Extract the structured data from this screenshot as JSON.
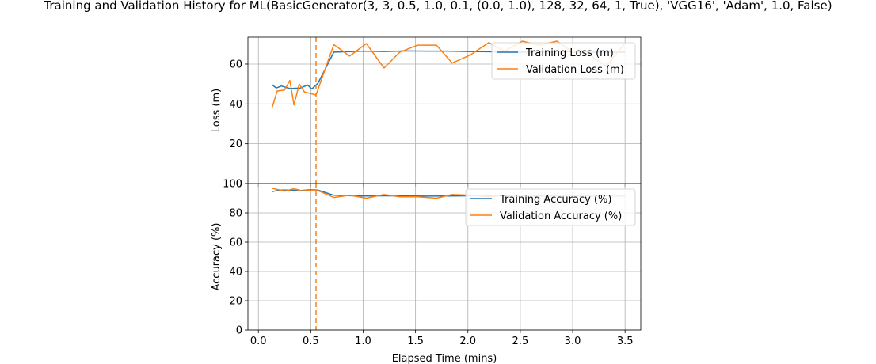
{
  "title": "Training and Validation History for ML(BasicGenerator(3, 3, 0.5, 1.0, 0.1, (0.0, 1.0), 128, 32, 64, 1, True), 'VGG16', 'Adam', 1.0, False)",
  "colors": {
    "training": "#1f77b4",
    "validation": "#ff7f0e",
    "grid": "#b0b0b0",
    "axis": "#000000"
  },
  "chart_data": [
    {
      "type": "line",
      "ylabel": "Loss (m)",
      "xlabel": "",
      "xlim": [
        -0.1,
        3.65
      ],
      "ylim": [
        0,
        73.5
      ],
      "xticks": [
        0.0,
        0.5,
        1.0,
        1.5,
        2.0,
        2.5,
        3.0,
        3.5
      ],
      "yticks": [
        0,
        20,
        40,
        60
      ],
      "ytick_labels": [
        "0",
        "20",
        "40",
        "60"
      ],
      "show_xtick_labels": false,
      "grid": true,
      "legend_position": "top-right",
      "vline_x": 0.55,
      "series": [
        {
          "name": "Training Loss (m)",
          "color_key": "training",
          "x": [
            0.13,
            0.17,
            0.22,
            0.3,
            0.4,
            0.47,
            0.51,
            0.57,
            0.72,
            0.85,
            1.0,
            1.2,
            1.4,
            1.6,
            1.8,
            2.0,
            2.2,
            2.4,
            2.6,
            2.8,
            3.0,
            3.2,
            3.4,
            3.5
          ],
          "y": [
            49.7,
            48.0,
            49.0,
            47.7,
            48.0,
            49.5,
            47.5,
            50.5,
            66.0,
            66.2,
            66.5,
            66.3,
            66.6,
            66.5,
            66.5,
            66.3,
            66.2,
            66.0,
            66.0,
            66.2,
            66.2,
            66.0,
            66.0,
            66.0
          ]
        },
        {
          "name": "Validation Loss (m)",
          "color_key": "validation",
          "x": [
            0.13,
            0.18,
            0.25,
            0.3,
            0.34,
            0.39,
            0.44,
            0.55,
            0.72,
            0.87,
            1.03,
            1.2,
            1.35,
            1.52,
            1.7,
            1.85,
            2.02,
            2.2,
            2.35,
            2.52,
            2.68,
            2.85,
            3.0,
            3.15,
            3.32,
            3.5
          ],
          "y": [
            38.0,
            46.5,
            47.0,
            51.8,
            39.5,
            50.0,
            46.0,
            44.5,
            69.8,
            64.0,
            70.3,
            58.0,
            66.0,
            69.5,
            69.5,
            60.5,
            64.5,
            70.8,
            66.5,
            71.5,
            69.5,
            71.5,
            66.0,
            65.0,
            59.0,
            70.5
          ]
        }
      ]
    },
    {
      "type": "line",
      "ylabel": "Accuracy (%)",
      "xlabel": "Elapsed Time (mins)",
      "xlim": [
        -0.1,
        3.65
      ],
      "ylim": [
        0,
        100
      ],
      "xticks": [
        0.0,
        0.5,
        1.0,
        1.5,
        2.0,
        2.5,
        3.0,
        3.5
      ],
      "xtick_labels": [
        "0.0",
        "0.5",
        "1.0",
        "1.5",
        "2.0",
        "2.5",
        "3.0",
        "3.5"
      ],
      "yticks": [
        0,
        20,
        40,
        60,
        80,
        100
      ],
      "ytick_labels": [
        "0",
        "20",
        "40",
        "60",
        "80",
        "100"
      ],
      "show_xtick_labels": true,
      "grid": true,
      "legend_position": "top-right",
      "vline_x": 0.55,
      "series": [
        {
          "name": "Training Accuracy (%)",
          "color_key": "training",
          "x": [
            0.13,
            0.2,
            0.3,
            0.4,
            0.5,
            0.57,
            0.72,
            0.85,
            1.0,
            1.2,
            1.4,
            1.6,
            1.8,
            2.0,
            2.2,
            2.4,
            2.6,
            2.8,
            3.0,
            3.2,
            3.4,
            3.5
          ],
          "y": [
            94.5,
            95.5,
            95.5,
            95.2,
            95.8,
            95.5,
            92.0,
            91.8,
            91.5,
            91.6,
            91.5,
            91.4,
            91.5,
            91.6,
            91.6,
            91.5,
            91.5,
            91.6,
            91.6,
            91.5,
            91.6,
            91.6
          ]
        },
        {
          "name": "Validation Accuracy (%)",
          "color_key": "validation",
          "x": [
            0.13,
            0.25,
            0.34,
            0.42,
            0.55,
            0.72,
            0.87,
            1.03,
            1.2,
            1.35,
            1.52,
            1.7,
            1.85,
            2.02,
            2.2,
            2.35,
            2.52,
            2.68,
            2.85,
            3.0,
            3.15,
            3.32,
            3.5
          ],
          "y": [
            96.8,
            94.8,
            96.5,
            95.0,
            95.8,
            90.5,
            92.0,
            90.0,
            92.5,
            91.0,
            91.0,
            90.0,
            92.5,
            92.0,
            91.0,
            92.0,
            91.5,
            92.0,
            91.5,
            91.8,
            91.5,
            91.6,
            91.6
          ]
        }
      ]
    }
  ]
}
